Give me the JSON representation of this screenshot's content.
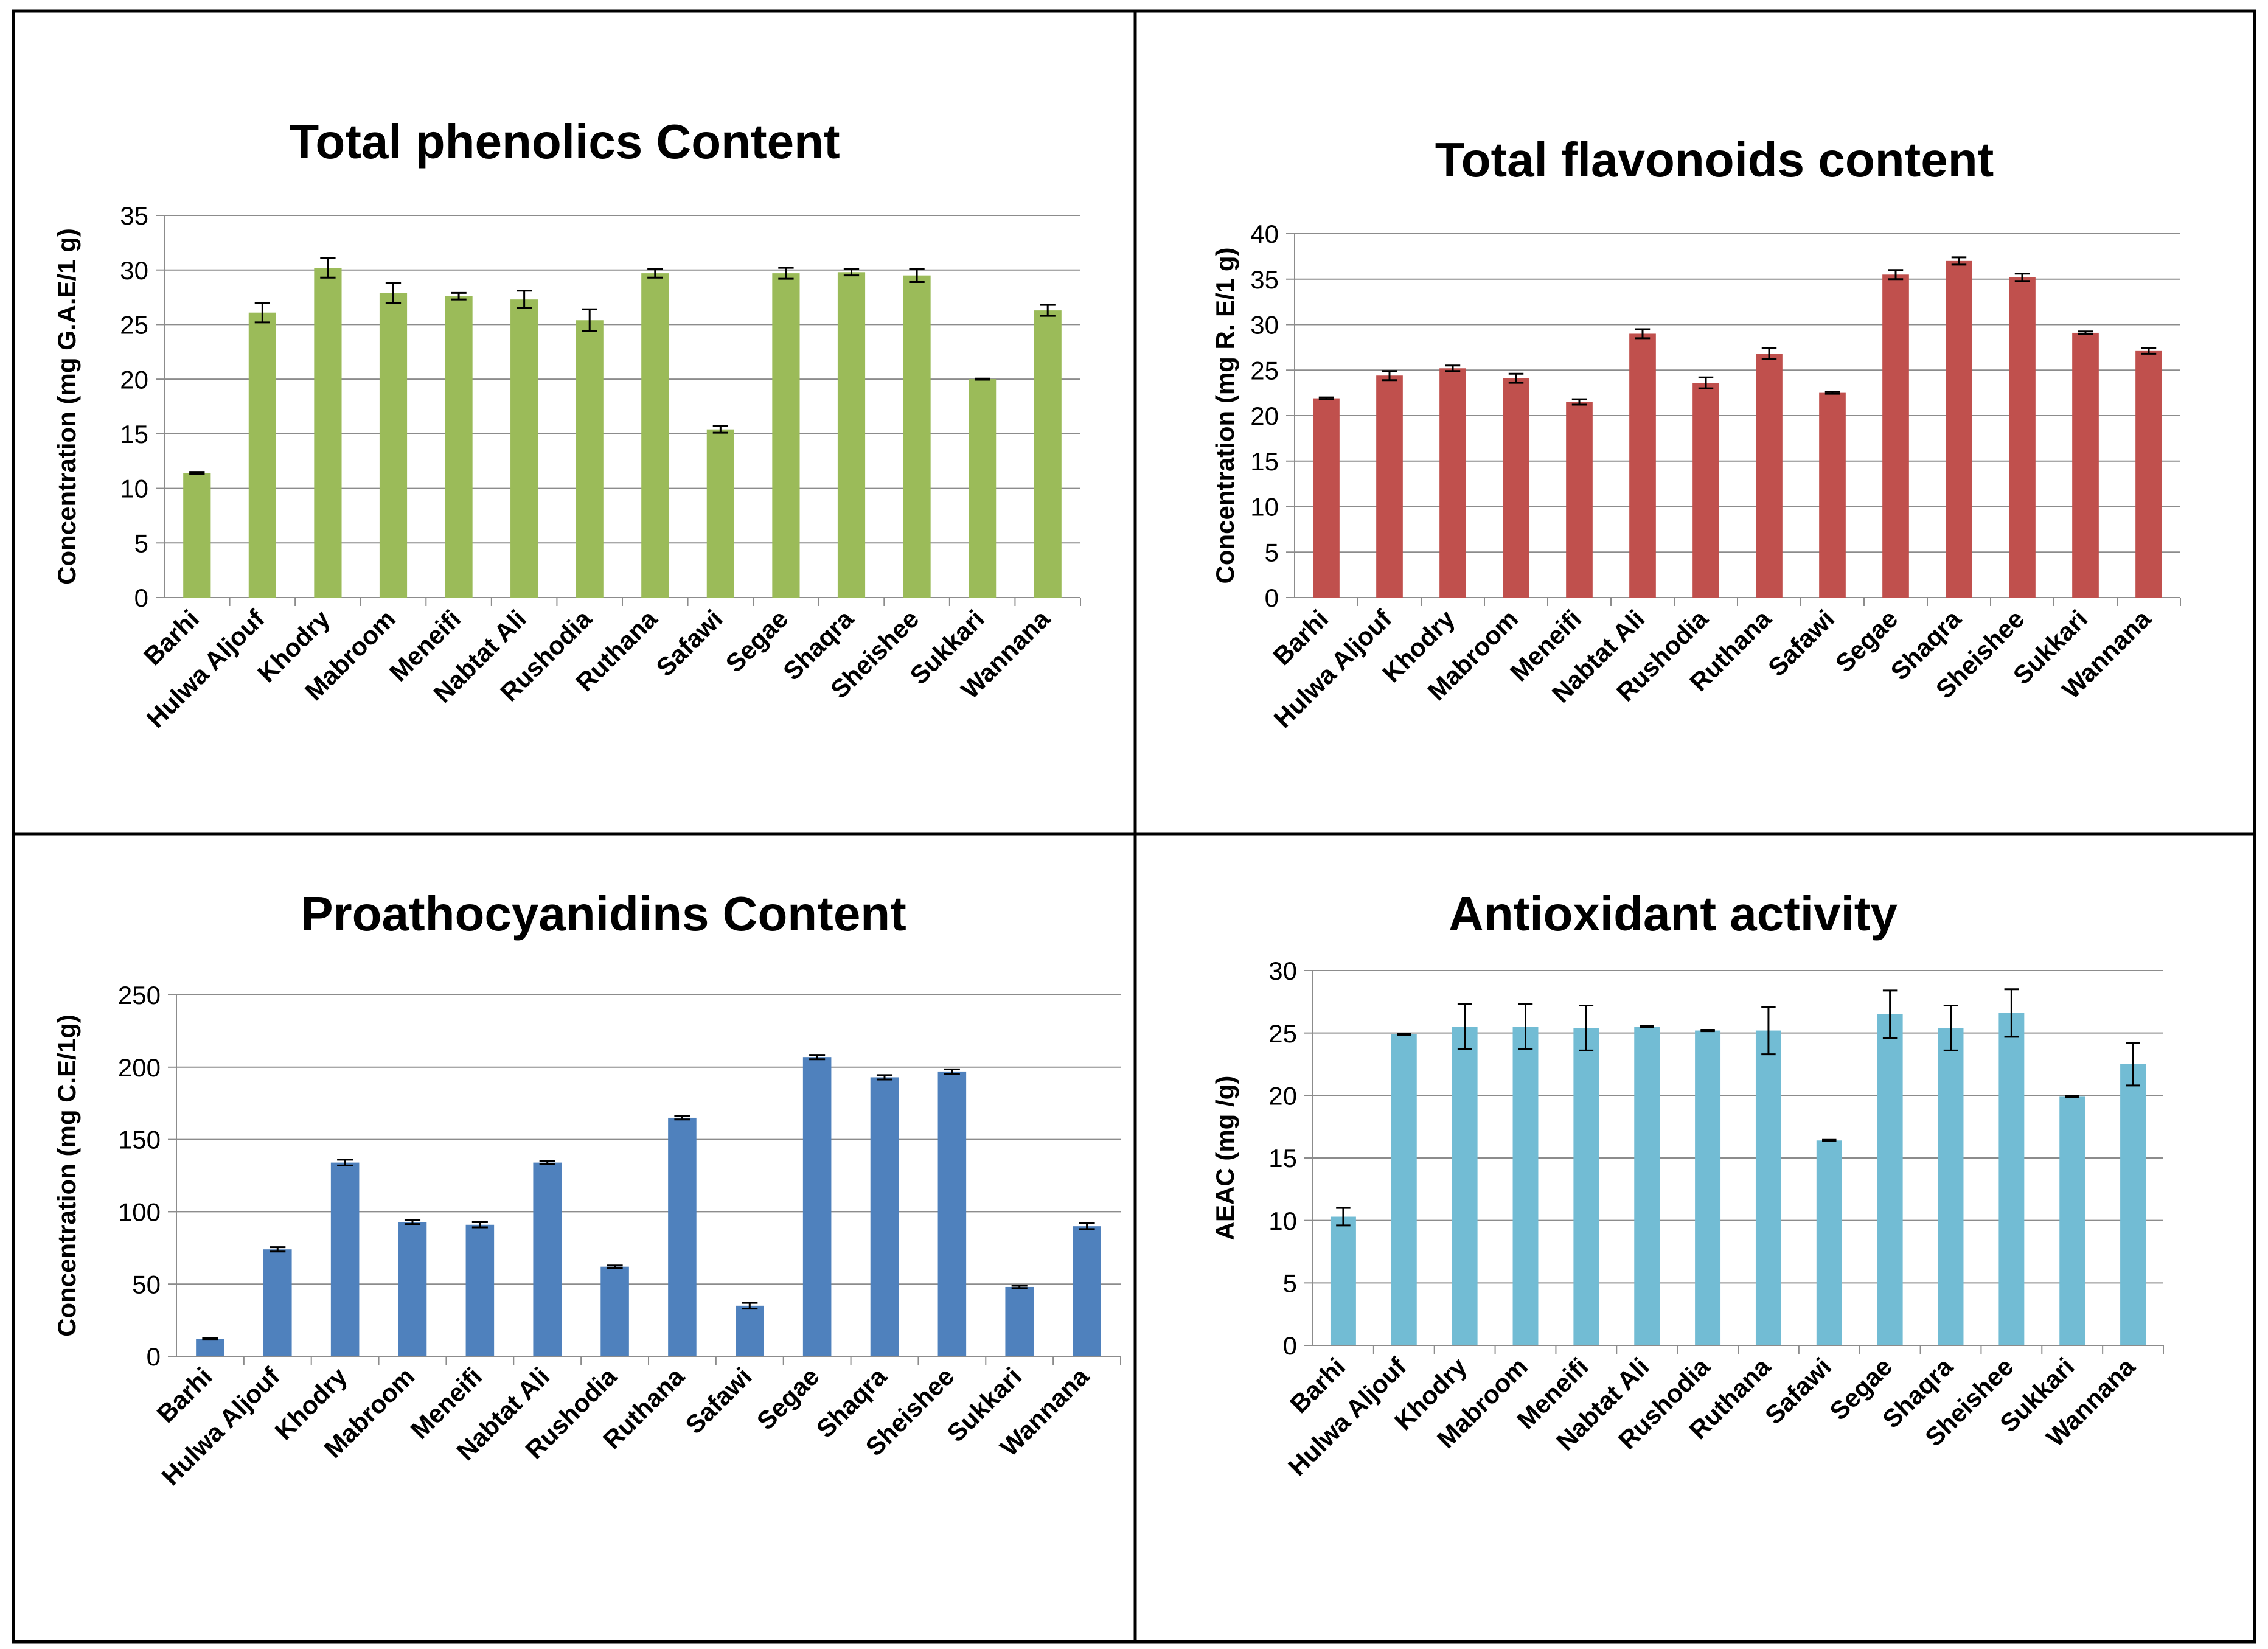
{
  "chart_data": [
    {
      "type": "bar",
      "title": "Total phenolics Content",
      "ylabel": "Concentration (mg G.A.E/1 g)",
      "xlabel": "",
      "color": "#9BBB59",
      "ylim": [
        0,
        35
      ],
      "yticks": [
        0,
        5,
        10,
        15,
        20,
        25,
        30,
        35
      ],
      "categories": [
        "Barhi",
        "Hulwa Aljouf",
        "Khodry",
        "Mabroom",
        "Meneifi",
        "Nabtat Ali",
        "Rushodia",
        "Ruthana",
        "Safawi",
        "Segae",
        "Shaqra",
        "Sheishee",
        "Sukkari",
        "Wannana"
      ],
      "values": [
        11.4,
        26.1,
        30.2,
        27.9,
        27.6,
        27.3,
        25.4,
        29.7,
        15.4,
        29.7,
        29.8,
        29.5,
        20.0,
        26.3
      ],
      "errors": [
        0.1,
        0.9,
        0.9,
        0.9,
        0.3,
        0.8,
        1.0,
        0.4,
        0.3,
        0.5,
        0.3,
        0.6,
        0.05,
        0.5
      ],
      "grid": true
    },
    {
      "type": "bar",
      "title": "Total flavonoids content",
      "ylabel": "Concentration (mg R. E/1 g)",
      "xlabel": "",
      "color": "#C0504D",
      "ylim": [
        0,
        40
      ],
      "yticks": [
        0,
        5,
        10,
        15,
        20,
        25,
        30,
        35,
        40
      ],
      "categories": [
        "Barhi",
        "Hulwa Aljouf",
        "Khodry",
        "Mabroom",
        "Meneifi",
        "Nabtat Ali",
        "Rushodia",
        "Ruthana",
        "Safawi",
        "Segae",
        "Shaqra",
        "Sheishee",
        "Sukkari",
        "Wannana"
      ],
      "values": [
        21.9,
        24.4,
        25.2,
        24.1,
        21.5,
        29.0,
        23.6,
        26.8,
        22.5,
        35.5,
        37.0,
        35.2,
        29.1,
        27.1
      ],
      "errors": [
        0.1,
        0.5,
        0.3,
        0.5,
        0.3,
        0.5,
        0.6,
        0.6,
        0.1,
        0.5,
        0.4,
        0.4,
        0.15,
        0.3
      ],
      "grid": true
    },
    {
      "type": "bar",
      "title": "Proathocyanidins Content",
      "ylabel": "Concentration (mg C.E/1g)",
      "xlabel": "",
      "color": "#4F81BD",
      "ylim": [
        0,
        250
      ],
      "yticks": [
        0,
        50,
        100,
        150,
        200,
        250
      ],
      "categories": [
        "Barhi",
        "Hulwa Aljouf",
        "Khodry",
        "Mabroom",
        "Meneifi",
        "Nabtat Ali",
        "Rushodia",
        "Ruthana",
        "Safawi",
        "Segae",
        "Shaqra",
        "Sheishee",
        "Sukkari",
        "Wannana"
      ],
      "values": [
        12,
        74,
        134,
        93,
        91,
        134,
        62,
        165,
        35,
        207,
        193,
        197,
        48,
        90
      ],
      "errors": [
        0.5,
        1.5,
        2.0,
        1.5,
        1.8,
        1.0,
        0.8,
        1.2,
        2.0,
        1.5,
        1.5,
        1.5,
        0.8,
        2.0
      ],
      "grid": true
    },
    {
      "type": "bar",
      "title": "Antioxidant activity",
      "ylabel": "AEAC (mg /g)",
      "xlabel": "",
      "color": "#72BCD4",
      "ylim": [
        0,
        30
      ],
      "yticks": [
        0,
        5,
        10,
        15,
        20,
        25,
        30
      ],
      "categories": [
        "Barhi",
        "Hulwa Aljouf",
        "Khodry",
        "Mabroom",
        "Meneifi",
        "Nabtat Ali",
        "Rushodia",
        "Ruthana",
        "Safawi",
        "Segae",
        "Shaqra",
        "Sheishee",
        "Sukkari",
        "Wannana"
      ],
      "values": [
        10.3,
        24.9,
        25.5,
        25.5,
        25.4,
        25.5,
        25.2,
        25.2,
        16.4,
        26.5,
        25.4,
        26.6,
        19.9,
        22.5
      ],
      "errors": [
        0.7,
        0.05,
        1.8,
        1.8,
        1.8,
        0.05,
        0.05,
        1.9,
        0.05,
        1.9,
        1.8,
        1.9,
        0.05,
        1.7
      ],
      "grid": true
    }
  ]
}
